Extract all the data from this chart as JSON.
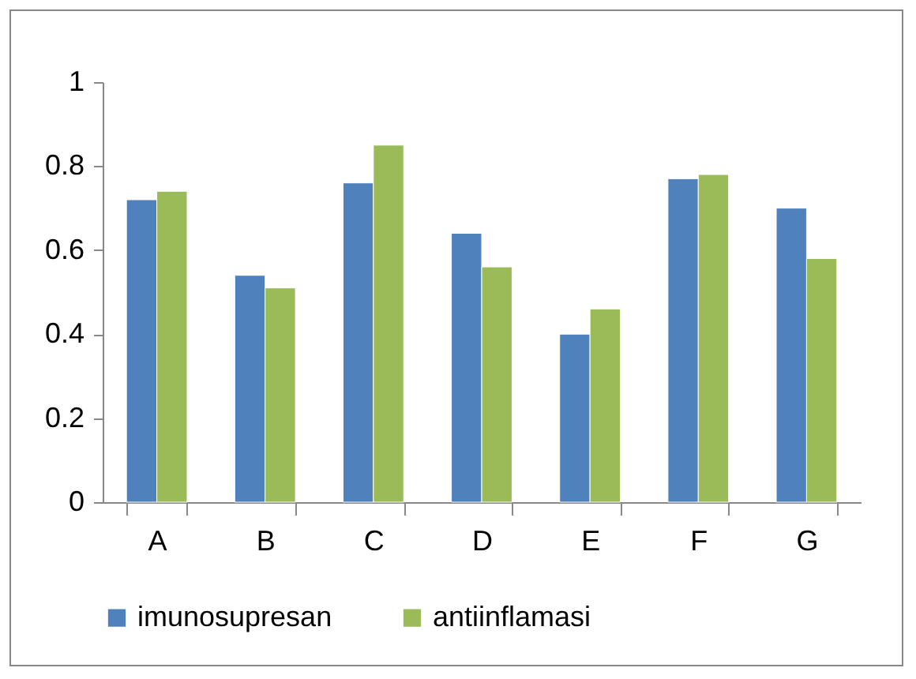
{
  "chart_data": {
    "type": "bar",
    "categories": [
      "A",
      "B",
      "C",
      "D",
      "E",
      "F",
      "G"
    ],
    "series": [
      {
        "name": "imunosupresan",
        "color": "#4f81bd",
        "values": [
          0.72,
          0.54,
          0.76,
          0.64,
          0.4,
          0.77,
          0.7
        ]
      },
      {
        "name": "antiinflamasi",
        "color": "#9bbb59",
        "values": [
          0.74,
          0.51,
          0.85,
          0.56,
          0.46,
          0.78,
          0.58
        ]
      }
    ],
    "ylim": [
      0,
      1
    ],
    "yticks": [
      0,
      0.2,
      0.4,
      0.6,
      0.8,
      1
    ],
    "grid": false,
    "legend": "bottom"
  }
}
